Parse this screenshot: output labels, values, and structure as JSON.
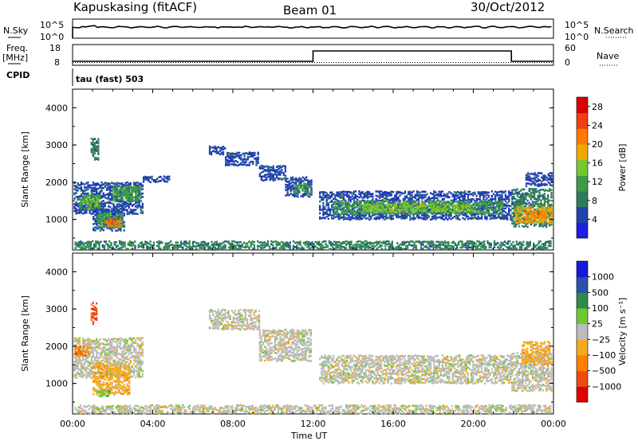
{
  "header": {
    "title": "Kapuskasing (fitACF)",
    "beam": "Beam 01",
    "date": "30/Oct/2012"
  },
  "top_panels": {
    "nsky_label": "N.Sky",
    "nsky_ticks": [
      "10^5",
      "10^0"
    ],
    "nsearch_label": "N.Search",
    "nsearch_ticks": [
      "10^5",
      "10^0"
    ],
    "freq_label": "Freq.",
    "freq_unit": "[MHz]",
    "freq_ticks": [
      "18",
      "8"
    ],
    "nave_label": "Nave",
    "nave_ticks": [
      "60",
      "0"
    ],
    "cpid_label": "CPID",
    "cpid_value": "tau (fast) 503"
  },
  "x_axis": {
    "label": "Time UT",
    "ticks": [
      "00:00",
      "04:00",
      "08:00",
      "12:00",
      "16:00",
      "20:00",
      "00:00"
    ]
  },
  "colors": {
    "power": [
      "#1f1fe0",
      "#2244aa",
      "#2e7d5a",
      "#3c9c46",
      "#74c830",
      "#f0a800",
      "#ff7a00",
      "#f04010",
      "#d80000"
    ],
    "velocity": [
      "#e00000",
      "#f04a10",
      "#ff7f00",
      "#f3aa1c",
      "#bcbcbc",
      "#6ec834",
      "#2e8a4a",
      "#2a50b0",
      "#1818d8"
    ]
  },
  "chart_data": [
    {
      "type": "heatmap",
      "name": "power",
      "ylabel": "Slant Range [km]",
      "yticks": [
        1000,
        2000,
        3000,
        4000
      ],
      "ylim": [
        180,
        4500
      ],
      "xlim_hours": [
        0,
        24
      ],
      "colorbar": {
        "label": "Power [dB]",
        "ticks": [
          4,
          8,
          12,
          16,
          20,
          24,
          28
        ],
        "range": [
          0,
          30
        ]
      },
      "bands": [
        {
          "t0": 0.05,
          "t1": 3.5,
          "r0": 1150,
          "r1": 2000,
          "c": 1
        },
        {
          "t0": 0.3,
          "t1": 1.4,
          "r0": 1280,
          "r1": 1650,
          "c": 3
        },
        {
          "t0": 0.5,
          "t1": 1.3,
          "r0": 1380,
          "r1": 1550,
          "c": 4
        },
        {
          "t0": 1.0,
          "t1": 2.6,
          "r0": 700,
          "r1": 1250,
          "c": 1
        },
        {
          "t0": 1.2,
          "t1": 2.5,
          "r0": 780,
          "r1": 1150,
          "c": 3
        },
        {
          "t0": 1.6,
          "t1": 2.4,
          "r0": 800,
          "r1": 1000,
          "c": 6
        },
        {
          "t0": 2.0,
          "t1": 3.4,
          "r0": 1500,
          "r1": 1900,
          "c": 3
        },
        {
          "t0": 0.9,
          "t1": 1.3,
          "r0": 2600,
          "r1": 3150,
          "c": 2
        },
        {
          "t0": 3.5,
          "t1": 4.8,
          "r0": 2000,
          "r1": 2150,
          "c": 1
        },
        {
          "t0": 6.8,
          "t1": 7.6,
          "r0": 2750,
          "r1": 2950,
          "c": 1
        },
        {
          "t0": 7.6,
          "t1": 9.3,
          "r0": 2450,
          "r1": 2800,
          "c": 1
        },
        {
          "t0": 9.3,
          "t1": 10.6,
          "r0": 2050,
          "r1": 2450,
          "c": 1
        },
        {
          "t0": 10.6,
          "t1": 11.9,
          "r0": 1600,
          "r1": 2100,
          "c": 1
        },
        {
          "t0": 11.0,
          "t1": 11.9,
          "r0": 1700,
          "r1": 1950,
          "c": 3
        },
        {
          "t0": 12.3,
          "t1": 21.9,
          "r0": 1000,
          "r1": 1750,
          "c": 1
        },
        {
          "t0": 13.0,
          "t1": 21.5,
          "r0": 1150,
          "r1": 1500,
          "c": 3
        },
        {
          "t0": 14.5,
          "t1": 20.0,
          "r0": 1200,
          "r1": 1400,
          "c": 4
        },
        {
          "t0": 21.9,
          "t1": 23.9,
          "r0": 800,
          "r1": 1800,
          "c": 2
        },
        {
          "t0": 22.0,
          "t1": 23.9,
          "r0": 900,
          "r1": 1350,
          "c": 5
        },
        {
          "t0": 22.6,
          "t1": 23.6,
          "r0": 1000,
          "r1": 1200,
          "c": 6
        },
        {
          "t0": 22.6,
          "t1": 23.9,
          "r0": 1900,
          "r1": 2250,
          "c": 1
        },
        {
          "t0": 0.1,
          "t1": 23.9,
          "r0": 200,
          "r1": 420,
          "c": 2
        }
      ]
    },
    {
      "type": "heatmap",
      "name": "velocity",
      "ylabel": "Slant Range [km]",
      "yticks": [
        1000,
        2000,
        3000,
        4000
      ],
      "ylim": [
        180,
        4500
      ],
      "xlim_hours": [
        0,
        24
      ],
      "colorbar": {
        "label": "Velocity [m s⁻¹]",
        "ticks": [
          "1000",
          "500",
          "100",
          "25",
          "−25",
          "−100",
          "−500",
          "−1000"
        ]
      },
      "bands": [
        {
          "t0": 0.05,
          "t1": 3.5,
          "r0": 1150,
          "r1": 2200,
          "c": 4
        },
        {
          "t0": 0.1,
          "t1": 0.8,
          "r0": 1750,
          "r1": 2000,
          "c": 2
        },
        {
          "t0": 1.0,
          "t1": 2.8,
          "r0": 700,
          "r1": 1550,
          "c": 3
        },
        {
          "t0": 1.2,
          "t1": 1.8,
          "r0": 650,
          "r1": 800,
          "c": 5
        },
        {
          "t0": 0.9,
          "t1": 1.2,
          "r0": 2600,
          "r1": 3150,
          "c": 1
        },
        {
          "t0": 6.8,
          "t1": 9.3,
          "r0": 2450,
          "r1": 2950,
          "c": 4
        },
        {
          "t0": 9.3,
          "t1": 11.9,
          "r0": 1600,
          "r1": 2450,
          "c": 4
        },
        {
          "t0": 12.3,
          "t1": 21.9,
          "r0": 1000,
          "r1": 1750,
          "c": 4
        },
        {
          "t0": 21.9,
          "t1": 23.9,
          "r0": 800,
          "r1": 1800,
          "c": 4
        },
        {
          "t0": 22.4,
          "t1": 23.8,
          "r0": 1500,
          "r1": 2100,
          "c": 3
        },
        {
          "t0": 0.1,
          "t1": 23.9,
          "r0": 200,
          "r1": 420,
          "c": 4
        }
      ]
    }
  ],
  "series_lines": {
    "nsky_level": 0.55,
    "freq_low": 8,
    "freq_high": 18,
    "freq_step_hours": [
      12.0,
      21.9
    ],
    "freq_step_value": 14.5,
    "nave_level": 8
  }
}
